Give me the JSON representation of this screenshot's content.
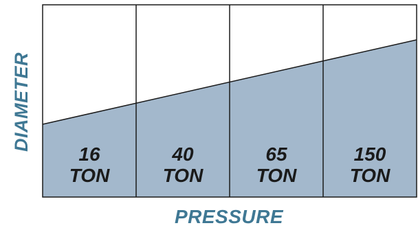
{
  "diagram": {
    "axis_y_label": "DIAMETER",
    "axis_x_label": "PRESSURE",
    "segments": [
      {
        "line1": "16",
        "line2": "TON"
      },
      {
        "line1": "40",
        "line2": "TON"
      },
      {
        "line1": "65",
        "line2": "TON"
      },
      {
        "line1": "150",
        "line2": "TON"
      }
    ],
    "colors": {
      "fill": "#a3b8cc",
      "border": "#1a1a1a",
      "label": "#3f7894",
      "text": "#1a1a1a"
    }
  }
}
